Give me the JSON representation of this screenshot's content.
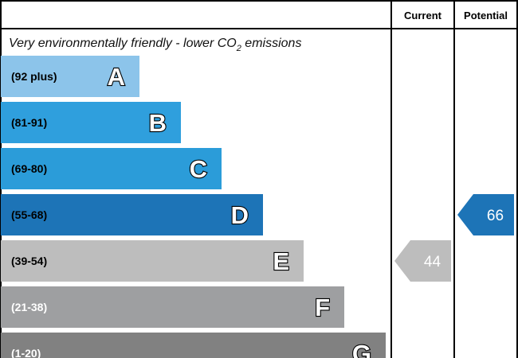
{
  "header": {
    "current_label": "Current",
    "potential_label": "Potential"
  },
  "top_label": {
    "prefix": "Very environmentally friendly - lower CO",
    "subscript": "2",
    "suffix": " emissions"
  },
  "chart_data": {
    "type": "bar",
    "title": "",
    "categories": [
      "A",
      "B",
      "C",
      "D",
      "E",
      "F",
      "G"
    ],
    "bands": [
      {
        "letter": "A",
        "range": "(92 plus)",
        "min": 92,
        "max": null,
        "color": "#8cc4ea",
        "text_color": "#000000"
      },
      {
        "letter": "B",
        "range": "(81-91)",
        "min": 81,
        "max": 91,
        "color": "#2f9fdd",
        "text_color": "#000000"
      },
      {
        "letter": "C",
        "range": "(69-80)",
        "min": 69,
        "max": 80,
        "color": "#2b9cd9",
        "text_color": "#000000"
      },
      {
        "letter": "D",
        "range": "(55-68)",
        "min": 55,
        "max": 68,
        "color": "#1d74b7",
        "text_color": "#000000"
      },
      {
        "letter": "E",
        "range": "(39-54)",
        "min": 39,
        "max": 54,
        "color": "#bdbdbd",
        "text_color": "#000000"
      },
      {
        "letter": "F",
        "range": "(21-38)",
        "min": 21,
        "max": 38,
        "color": "#9e9fa1",
        "text_color": "#ffffff"
      },
      {
        "letter": "G",
        "range": "(1-20)",
        "min": 1,
        "max": 20,
        "color": "#818181",
        "text_color": "#ffffff"
      }
    ],
    "current": {
      "value": "44",
      "band": "E",
      "color": "#bdbdbd"
    },
    "potential": {
      "value": "66",
      "band": "D",
      "color": "#1d74b7"
    }
  }
}
